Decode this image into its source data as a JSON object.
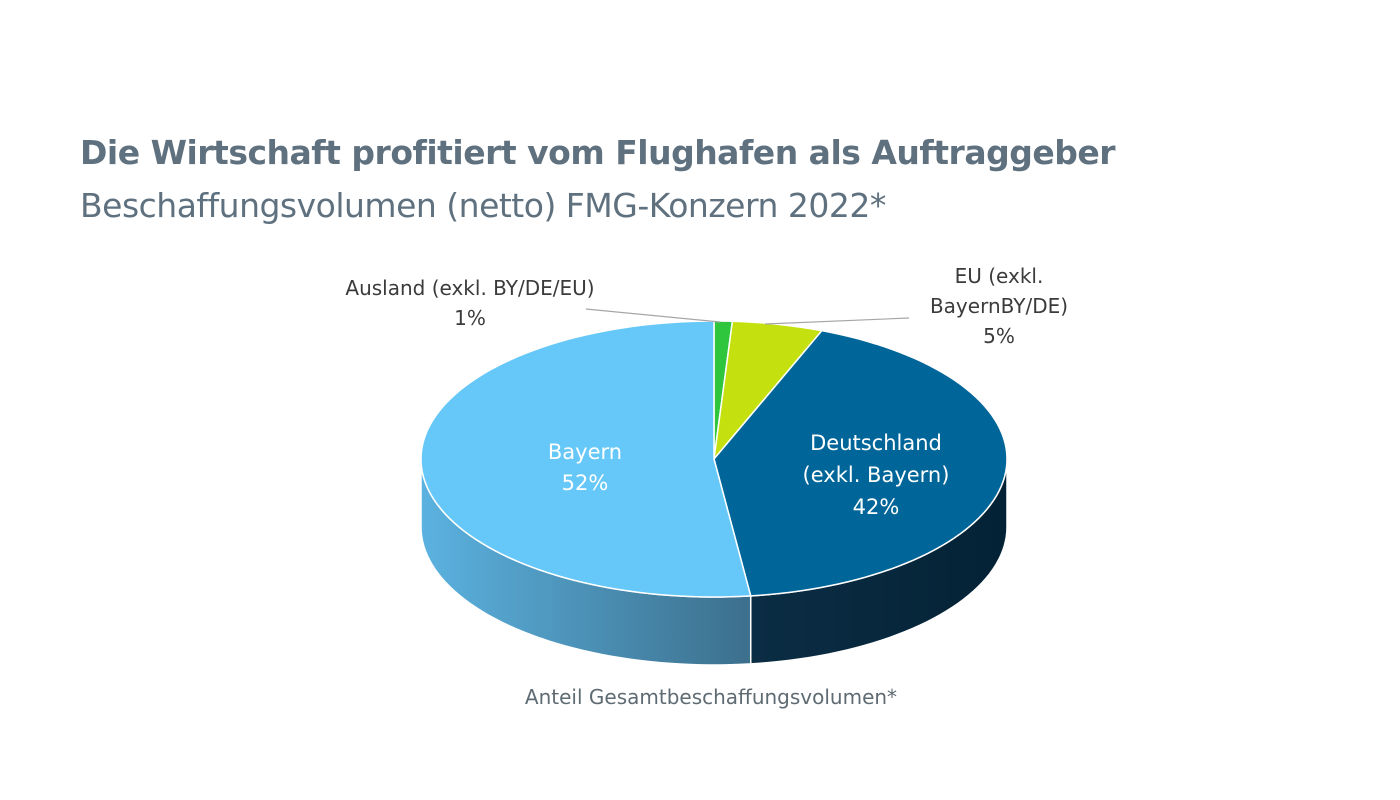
{
  "header": {
    "title": "Die Wirtschaft profitiert vom Flughafen als Auftraggeber",
    "subtitle": "Beschaffungsvolumen (netto) FMG-Konzern 2022*"
  },
  "chart_data": {
    "type": "pie",
    "style": "3d",
    "caption": "Anteil Gesamtbeschaffungsvolumen*",
    "slices": [
      {
        "label_lines": [
          "Ausland (exkl. BY/DE/EU)",
          "1%"
        ],
        "value": 1,
        "color": "#2fc53d",
        "label_color": "#3b3b3b"
      },
      {
        "label_lines": [
          "EU (exkl.",
          "BayernBY/DE)",
          "5%"
        ],
        "value": 5,
        "color": "#c4e10f",
        "label_color": "#3b3b3b"
      },
      {
        "label_lines": [
          "Deutschland",
          "(exkl. Bayern)",
          "42%"
        ],
        "value": 42,
        "color": "#006598",
        "label_color": "#ffffff"
      },
      {
        "label_lines": [
          "Bayern",
          "52%"
        ],
        "value": 52,
        "color": "#66c8f8",
        "label_color": "#ffffff"
      }
    ]
  }
}
